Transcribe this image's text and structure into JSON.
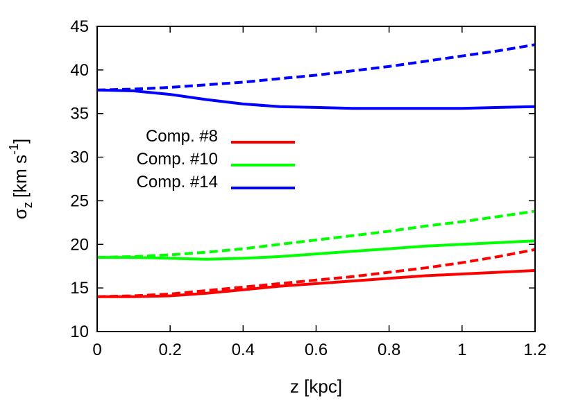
{
  "chart_data": {
    "type": "line",
    "xlabel": "z [kpc]",
    "ylabel": {
      "symbol": "σ",
      "subscript": "z",
      "unit_main": "[km s",
      "unit_sup": "-1",
      "unit_close": "]"
    },
    "xlim": [
      0,
      1.2
    ],
    "ylim": [
      10,
      45
    ],
    "xticks": [
      "0",
      "0.2",
      "0.4",
      "0.6",
      "0.8",
      "1",
      "1.2"
    ],
    "yticks": [
      "10",
      "15",
      "20",
      "25",
      "30",
      "35",
      "40",
      "45"
    ],
    "grid": false,
    "legend_position": "left",
    "series": [
      {
        "name": "Comp. #8",
        "color": "#ff0000",
        "solid": {
          "x": [
            0,
            0.1,
            0.2,
            0.3,
            0.4,
            0.5,
            0.6,
            0.7,
            0.8,
            0.9,
            1.0,
            1.1,
            1.2
          ],
          "y": [
            14.0,
            14.0,
            14.1,
            14.4,
            14.8,
            15.2,
            15.5,
            15.8,
            16.1,
            16.4,
            16.6,
            16.8,
            17.0
          ]
        },
        "dashed": {
          "x": [
            0,
            0.1,
            0.2,
            0.3,
            0.4,
            0.5,
            0.6,
            0.7,
            0.8,
            0.9,
            1.0,
            1.1,
            1.2
          ],
          "y": [
            14.0,
            14.1,
            14.3,
            14.7,
            15.1,
            15.5,
            15.9,
            16.3,
            16.8,
            17.3,
            17.9,
            18.6,
            19.4
          ]
        }
      },
      {
        "name": "Comp. #10",
        "color": "#00ff00",
        "solid": {
          "x": [
            0,
            0.1,
            0.2,
            0.3,
            0.4,
            0.5,
            0.6,
            0.7,
            0.8,
            0.9,
            1.0,
            1.1,
            1.2
          ],
          "y": [
            18.5,
            18.5,
            18.4,
            18.3,
            18.4,
            18.6,
            18.9,
            19.2,
            19.5,
            19.8,
            20.0,
            20.2,
            20.4
          ]
        },
        "dashed": {
          "x": [
            0,
            0.1,
            0.2,
            0.3,
            0.4,
            0.5,
            0.6,
            0.7,
            0.8,
            0.9,
            1.0,
            1.1,
            1.2
          ],
          "y": [
            18.5,
            18.6,
            18.8,
            19.1,
            19.5,
            20.0,
            20.5,
            21.0,
            21.5,
            22.1,
            22.6,
            23.2,
            23.8
          ]
        }
      },
      {
        "name": "Comp. #14",
        "color": "#0000ff",
        "solid": {
          "x": [
            0,
            0.1,
            0.2,
            0.3,
            0.4,
            0.5,
            0.6,
            0.7,
            0.8,
            0.9,
            1.0,
            1.1,
            1.2
          ],
          "y": [
            37.7,
            37.6,
            37.2,
            36.6,
            36.1,
            35.8,
            35.7,
            35.6,
            35.6,
            35.6,
            35.6,
            35.7,
            35.8
          ]
        },
        "dashed": {
          "x": [
            0,
            0.1,
            0.2,
            0.3,
            0.4,
            0.5,
            0.6,
            0.7,
            0.8,
            0.9,
            1.0,
            1.1,
            1.2
          ],
          "y": [
            37.7,
            37.8,
            38.0,
            38.3,
            38.6,
            39.0,
            39.4,
            39.9,
            40.4,
            41.0,
            41.6,
            42.2,
            42.9
          ]
        }
      }
    ]
  }
}
